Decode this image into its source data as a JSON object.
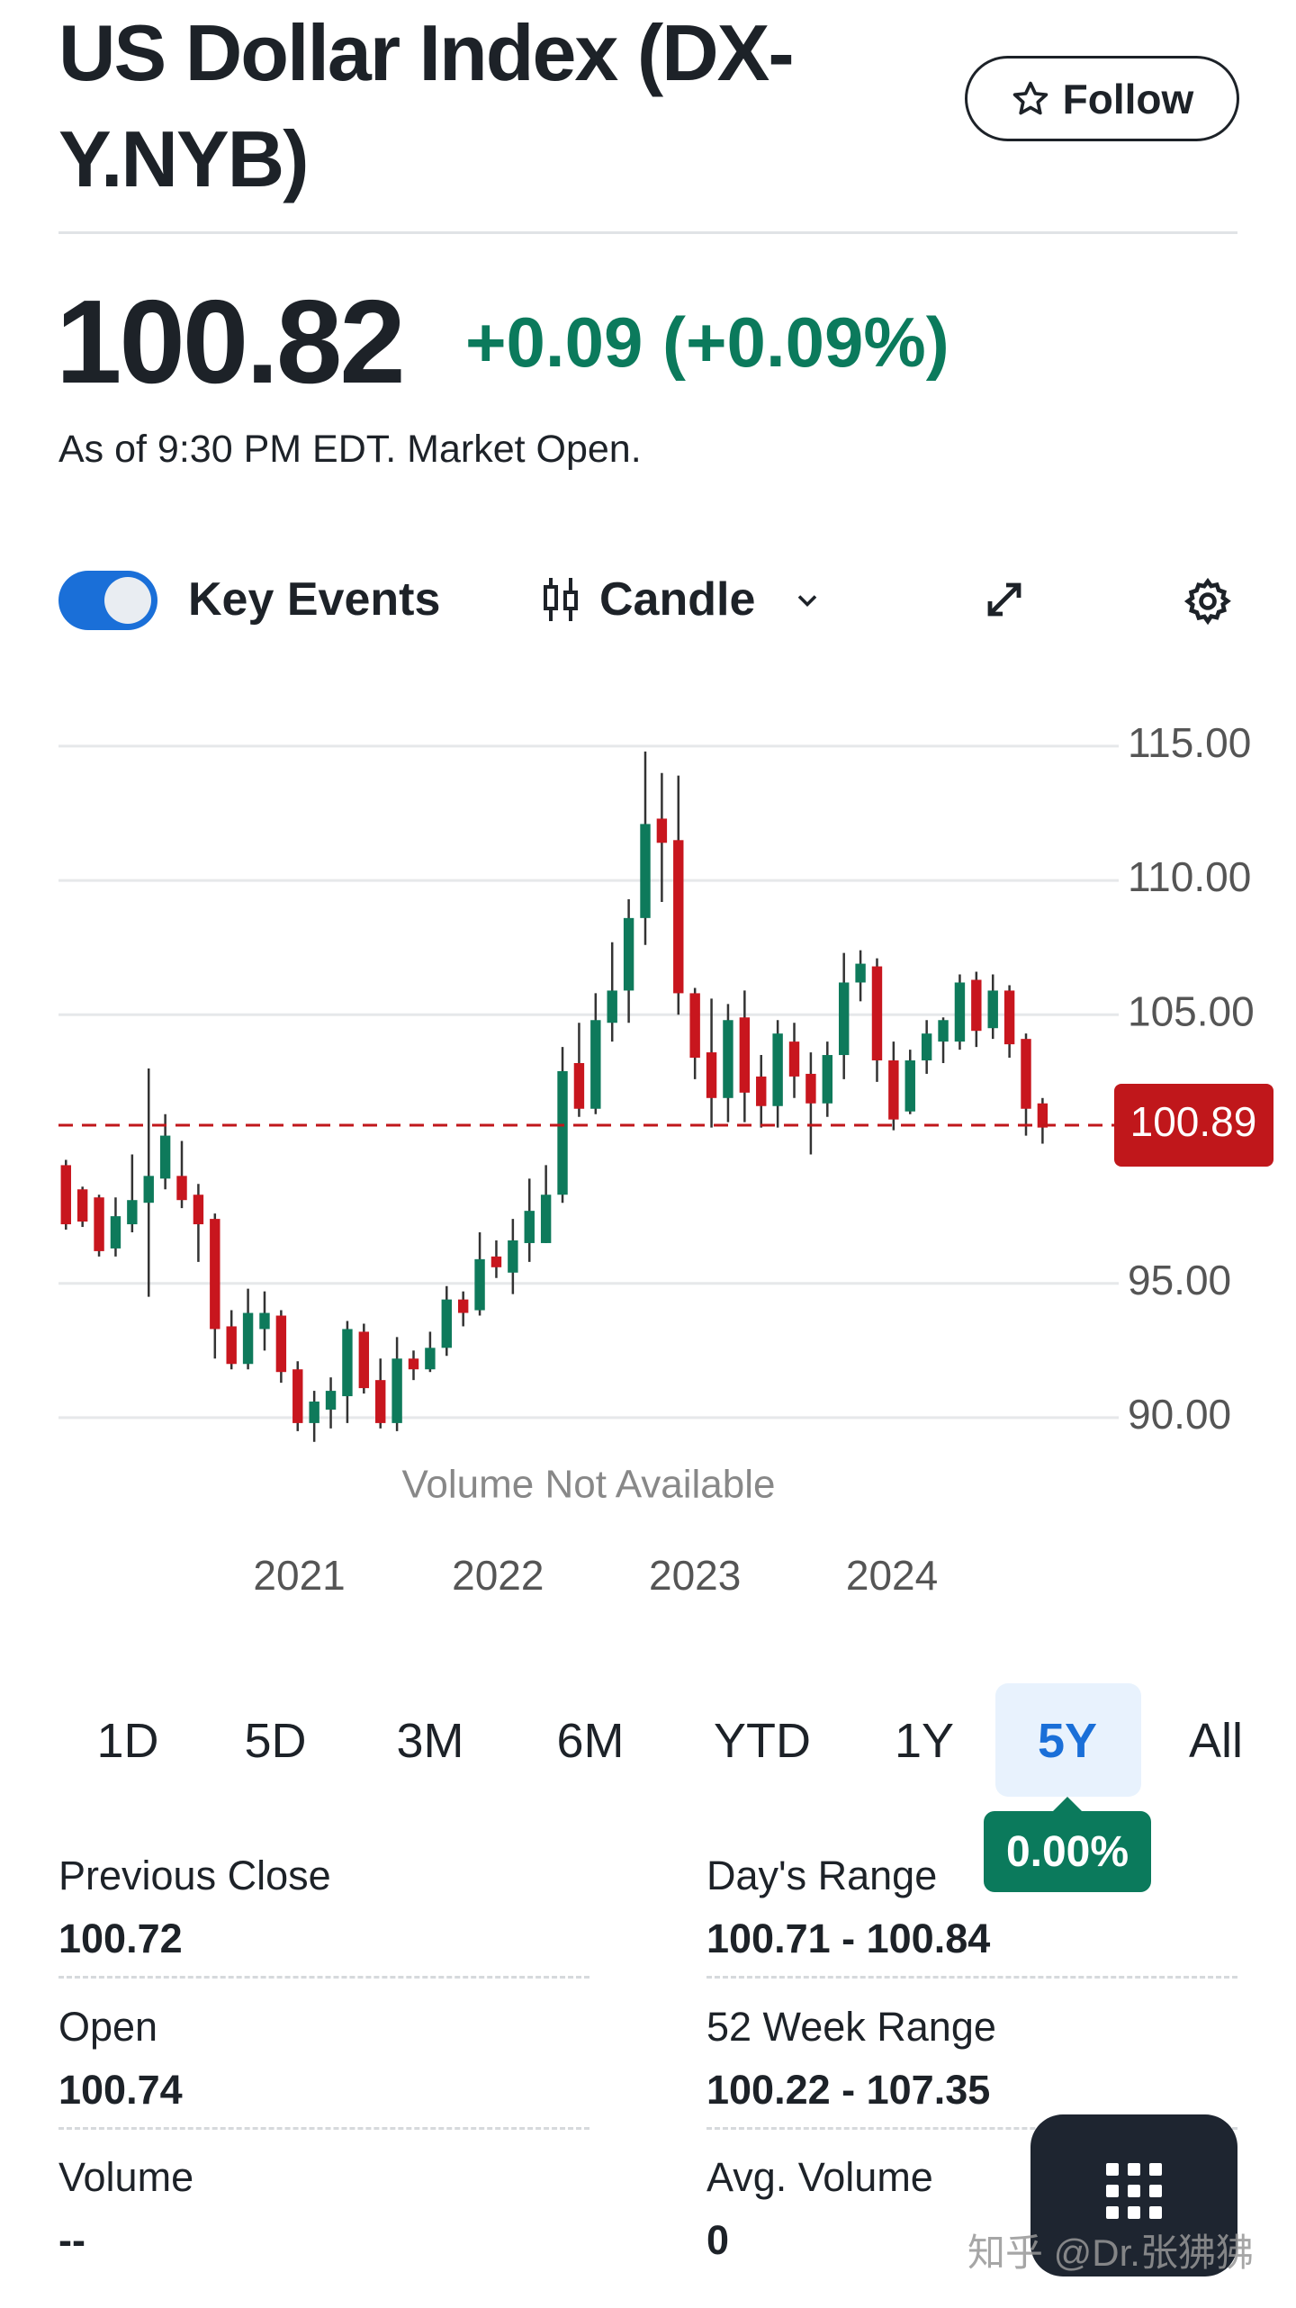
{
  "header": {
    "title": "US Dollar Index (DX-Y.NYB)",
    "follow": "Follow"
  },
  "quote": {
    "price": "100.82",
    "change": "+0.09 (+0.09%)",
    "as_of": "As of 9:30 PM EDT. Market Open."
  },
  "controls": {
    "key_events": "Key Events",
    "chart_style": "Candle"
  },
  "chart_data": {
    "type": "candlestick",
    "note": "Volume Not Available",
    "open": [
      99.4,
      98.5,
      98.2,
      96.3,
      97.2,
      98.0,
      98.9,
      99.0,
      98.3,
      97.4,
      93.4,
      92.0,
      93.3,
      93.8,
      91.8,
      89.8,
      90.3,
      90.8,
      93.2,
      91.4,
      89.8,
      92.2,
      91.8,
      92.6,
      94.4,
      94.0,
      96.0,
      95.4,
      96.5,
      96.5,
      98.3,
      103.2,
      101.5,
      104.7,
      105.9,
      108.6,
      112.3,
      111.5,
      105.8,
      103.6,
      101.9,
      104.9,
      102.7,
      101.6,
      104.0,
      102.8,
      101.7,
      103.5,
      106.2,
      106.8,
      103.3,
      101.4,
      103.3,
      104.0,
      104.0,
      106.3,
      104.5,
      105.9,
      104.1,
      101.7
    ],
    "high": [
      99.6,
      98.6,
      98.3,
      98.2,
      99.8,
      103.0,
      101.3,
      100.3,
      98.7,
      97.6,
      94.0,
      94.8,
      94.7,
      94.0,
      92.1,
      91.0,
      91.5,
      93.6,
      93.5,
      92.2,
      93.0,
      92.5,
      93.2,
      94.9,
      94.7,
      96.9,
      96.6,
      97.4,
      98.9,
      99.4,
      103.8,
      104.7,
      105.8,
      107.7,
      109.3,
      114.8,
      114.0,
      113.9,
      106.0,
      105.6,
      105.4,
      105.9,
      103.5,
      104.8,
      104.7,
      103.6,
      104.0,
      107.3,
      107.4,
      107.1,
      104.0,
      103.7,
      104.8,
      104.9,
      106.5,
      106.6,
      106.5,
      106.1,
      104.3,
      101.9
    ],
    "low": [
      97.0,
      97.1,
      96.0,
      96.0,
      96.9,
      94.5,
      98.5,
      97.8,
      95.8,
      92.2,
      91.8,
      91.8,
      92.5,
      91.3,
      89.5,
      89.1,
      89.6,
      89.8,
      90.9,
      89.6,
      89.5,
      91.4,
      91.7,
      92.3,
      93.4,
      93.8,
      95.2,
      94.6,
      95.8,
      96.5,
      98.0,
      101.2,
      101.3,
      104.0,
      104.7,
      107.6,
      109.2,
      105.0,
      102.6,
      100.8,
      101.0,
      101.0,
      100.8,
      100.8,
      101.9,
      99.8,
      101.2,
      102.6,
      105.5,
      102.5,
      100.7,
      101.3,
      102.8,
      103.2,
      103.7,
      103.8,
      104.1,
      103.4,
      100.5,
      100.2
    ],
    "close": [
      97.2,
      97.3,
      96.2,
      97.5,
      98.1,
      99.0,
      100.5,
      98.1,
      97.2,
      93.3,
      92.0,
      93.9,
      93.9,
      91.7,
      89.8,
      90.6,
      91.0,
      93.3,
      91.1,
      89.8,
      92.2,
      91.8,
      92.6,
      94.4,
      93.9,
      95.9,
      95.6,
      96.6,
      97.7,
      98.3,
      102.9,
      101.5,
      104.8,
      105.9,
      108.6,
      112.1,
      111.4,
      105.8,
      103.4,
      101.9,
      104.8,
      102.1,
      101.6,
      104.3,
      102.7,
      101.7,
      103.5,
      106.2,
      106.9,
      103.3,
      101.1,
      103.3,
      104.3,
      104.8,
      106.2,
      104.4,
      105.9,
      103.9,
      101.5,
      100.8
    ],
    "up_color": "#0e7a5b",
    "down_color": "#c8161e",
    "last_price": 100.89,
    "last_price_color": "#c0171b",
    "xlim": [
      -0.45,
      63.6
    ],
    "xticks": [
      {
        "value": 14.1,
        "label": "2021"
      },
      {
        "value": 26.1,
        "label": "2022"
      },
      {
        "value": 38.0,
        "label": "2023"
      },
      {
        "value": 49.9,
        "label": "2024"
      }
    ],
    "ylim": [
      89.16,
      115.9
    ],
    "yticks": [
      {
        "value": 90,
        "label": "90.00"
      },
      {
        "value": 95,
        "label": "95.00"
      },
      {
        "value": 105,
        "label": "105.00"
      },
      {
        "value": 110,
        "label": "110.00"
      },
      {
        "value": 115,
        "label": "115.00"
      }
    ],
    "grid": true
  },
  "ranges": [
    "1D",
    "5D",
    "3M",
    "6M",
    "YTD",
    "1Y",
    "5Y",
    "All"
  ],
  "range_change": "0.00%",
  "stats": [
    {
      "label": "Previous Close",
      "value": "100.72"
    },
    {
      "label": "Day's Range",
      "value": "100.71 - 100.84"
    },
    {
      "label": "Open",
      "value": "100.74"
    },
    {
      "label": "52 Week Range",
      "value": "100.22 - 107.35"
    },
    {
      "label": "Volume",
      "value": "--"
    },
    {
      "label": "Avg. Volume",
      "value": "0"
    }
  ],
  "watermark": "知乎 @Dr.张狒狒"
}
